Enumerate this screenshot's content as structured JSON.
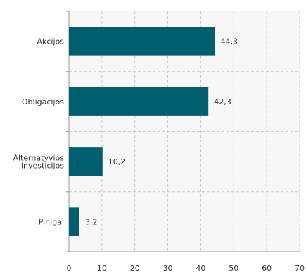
{
  "chart_data": {
    "type": "bar",
    "orientation": "horizontal",
    "categories": [
      "Akcijos",
      "Obligacijos",
      [
        "Alternatyvios",
        "investicijos"
      ],
      "Pinigai"
    ],
    "values": [
      44.3,
      42.3,
      10.2,
      3.2
    ],
    "value_labels": [
      "44,3",
      "42,3",
      "10,2",
      "3,2"
    ],
    "x_ticks": [
      "0",
      "10",
      "20",
      "30",
      "40",
      "50",
      "60",
      "70"
    ],
    "xlim": [
      0,
      70
    ],
    "title": "",
    "xlabel": "",
    "ylabel": "",
    "grid": true,
    "legend": "none",
    "colors": {
      "bar": "#005f6e",
      "plot_bg": "#f7f7f7",
      "grid": "#c8c8c8",
      "axis": "#999999",
      "text": "#333333"
    }
  }
}
